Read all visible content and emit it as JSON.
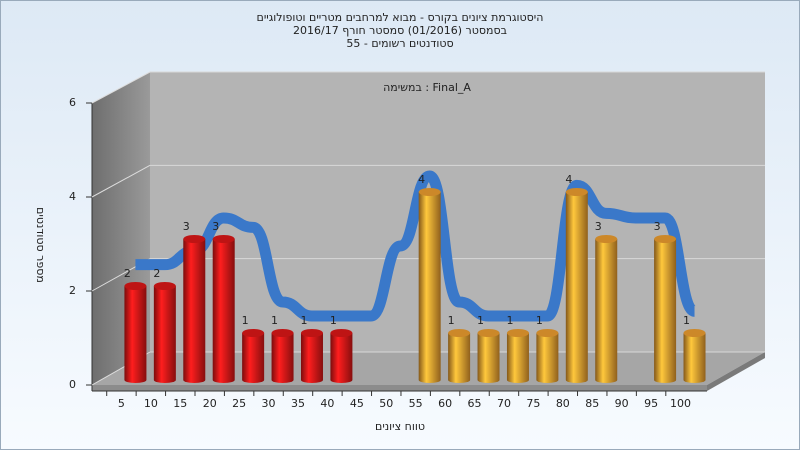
{
  "chart_data": {
    "type": "bar3d",
    "title": [
      "היסטוגרמת ציונים בקורס - מבוא למרחבים מטריים וטופולוגיים",
      "בסמסטר  (01/2016)  סמסטר חורף 2016/17",
      "סטודנטים רשומים - 55"
    ],
    "annotation": "במשימה : Final_A",
    "x_label": "טווח ציונים",
    "y_label": "מספר סטודנטים",
    "categories": [
      "5",
      "10",
      "15",
      "20",
      "25",
      "30",
      "35",
      "40",
      "45",
      "50",
      "55",
      "60",
      "65",
      "70",
      "75",
      "80",
      "85",
      "90",
      "95",
      "100"
    ],
    "values": [
      2,
      2,
      3,
      3,
      1,
      1,
      1,
      1,
      0,
      0,
      4,
      1,
      1,
      1,
      1,
      4,
      3,
      0,
      3,
      1
    ],
    "colors": [
      "#e01818",
      "#e01818",
      "#e01818",
      "#e01818",
      "#e01818",
      "#e01818",
      "#e01818",
      "#e01818",
      "#e01818",
      "#e01818",
      "#f0a030",
      "#f0a030",
      "#f0a030",
      "#f0a030",
      "#f0a030",
      "#f0a030",
      "#f0a030",
      "#f0a030",
      "#f0a030",
      "#f0a030"
    ],
    "trend": {
      "color": "#3a78c9",
      "values": [
        2.3,
        2.3,
        2.6,
        3.3,
        3.1,
        1.5,
        1.2,
        1.2,
        1.2,
        2.7,
        4.2,
        1.5,
        1.2,
        1.2,
        1.2,
        4.0,
        3.4,
        3.3,
        3.3,
        1.3
      ]
    },
    "ylim": [
      0,
      6
    ],
    "yticks": [
      0,
      2,
      4,
      6
    ],
    "grid": true
  }
}
